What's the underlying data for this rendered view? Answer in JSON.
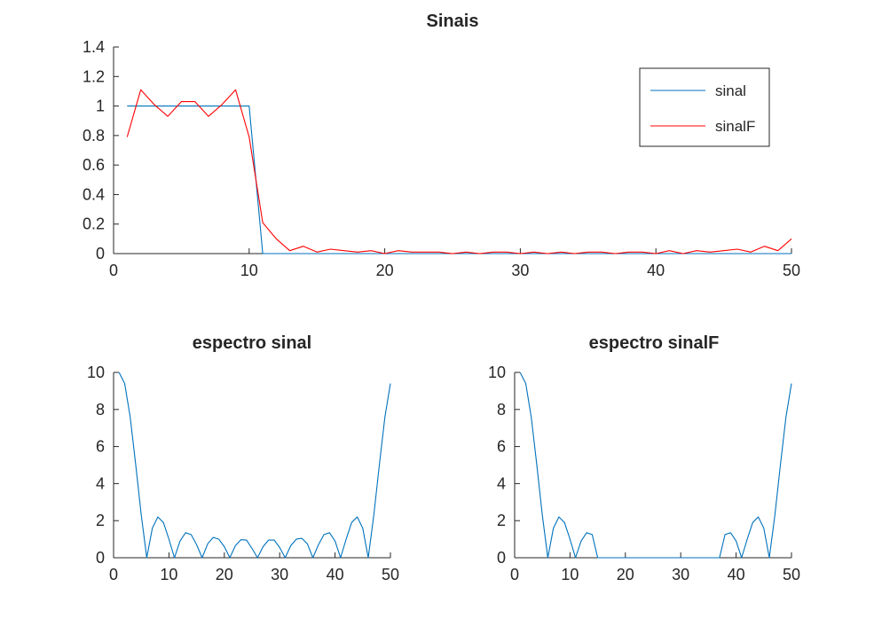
{
  "chart_data": [
    {
      "type": "line",
      "title": "Sinais",
      "xlabel": "",
      "ylabel": "",
      "xlim": [
        0,
        50
      ],
      "ylim": [
        0,
        1.4
      ],
      "xticks": [
        0,
        10,
        20,
        30,
        40,
        50
      ],
      "yticks": [
        0,
        0.2,
        0.4,
        0.6,
        0.8,
        1,
        1.2,
        1.4
      ],
      "xtick_labels": [
        "0",
        "10",
        "20",
        "30",
        "40",
        "50"
      ],
      "ytick_labels": [
        "0",
        "0.2",
        "0.4",
        "0.6",
        "0.8",
        "1",
        "1.2",
        "1.4"
      ],
      "grid": false,
      "legend": "top-right",
      "series": [
        {
          "name": "sinal",
          "color": "#0072BD",
          "x": [
            1,
            2,
            3,
            4,
            5,
            6,
            7,
            8,
            9,
            10,
            11,
            12,
            13,
            14,
            15,
            16,
            17,
            18,
            19,
            20,
            21,
            22,
            23,
            24,
            25,
            26,
            27,
            28,
            29,
            30,
            31,
            32,
            33,
            34,
            35,
            36,
            37,
            38,
            39,
            40,
            41,
            42,
            43,
            44,
            45,
            46,
            47,
            48,
            49,
            50
          ],
          "values": [
            1,
            1,
            1,
            1,
            1,
            1,
            1,
            1,
            1,
            1,
            0,
            0,
            0,
            0,
            0,
            0,
            0,
            0,
            0,
            0,
            0,
            0,
            0,
            0,
            0,
            0,
            0,
            0,
            0,
            0,
            0,
            0,
            0,
            0,
            0,
            0,
            0,
            0,
            0,
            0,
            0,
            0,
            0,
            0,
            0,
            0,
            0,
            0,
            0,
            0
          ]
        },
        {
          "name": "sinalF",
          "color": "#FF0000",
          "x": [
            1,
            2,
            3,
            4,
            5,
            6,
            7,
            8,
            9,
            10,
            11,
            12,
            13,
            14,
            15,
            16,
            17,
            18,
            19,
            20,
            21,
            22,
            23,
            24,
            25,
            26,
            27,
            28,
            29,
            30,
            31,
            32,
            33,
            34,
            35,
            36,
            37,
            38,
            39,
            40,
            41,
            42,
            43,
            44,
            45,
            46,
            47,
            48,
            49,
            50
          ],
          "values": [
            0.79,
            1.11,
            1.01,
            0.93,
            1.03,
            1.03,
            0.93,
            1.01,
            1.11,
            0.79,
            0.21,
            0.1,
            0.02,
            0.05,
            0.01,
            0.03,
            0.02,
            0.01,
            0.02,
            0.0,
            0.02,
            0.01,
            0.01,
            0.01,
            0.0,
            0.01,
            0.0,
            0.01,
            0.01,
            0.0,
            0.01,
            0.0,
            0.01,
            0.0,
            0.01,
            0.01,
            0.0,
            0.01,
            0.01,
            0.0,
            0.02,
            0.0,
            0.02,
            0.01,
            0.02,
            0.03,
            0.01,
            0.05,
            0.02,
            0.1
          ]
        }
      ]
    },
    {
      "type": "line",
      "title": "espectro sinal",
      "xlabel": "",
      "ylabel": "",
      "xlim": [
        0,
        50
      ],
      "ylim": [
        0,
        10
      ],
      "xticks": [
        0,
        10,
        20,
        30,
        40,
        50
      ],
      "yticks": [
        0,
        2,
        4,
        6,
        8,
        10
      ],
      "xtick_labels": [
        "0",
        "10",
        "20",
        "30",
        "40",
        "50"
      ],
      "ytick_labels": [
        "0",
        "2",
        "4",
        "6",
        "8",
        "10"
      ],
      "grid": false,
      "series": [
        {
          "color": "#0072BD",
          "x": [
            1,
            2,
            3,
            4,
            5,
            6,
            7,
            8,
            9,
            10,
            11,
            12,
            13,
            14,
            15,
            16,
            17,
            18,
            19,
            20,
            21,
            22,
            23,
            24,
            25,
            26,
            27,
            28,
            29,
            30,
            31,
            32,
            33,
            34,
            35,
            36,
            37,
            38,
            39,
            40,
            41,
            42,
            43,
            44,
            45,
            46,
            47,
            48,
            49,
            50
          ],
          "values": [
            10,
            9.4,
            7.6,
            5.0,
            2.3,
            0,
            1.6,
            2.2,
            1.9,
            1.0,
            0,
            0.9,
            1.35,
            1.25,
            0.7,
            0,
            0.75,
            1.1,
            1.0,
            0.6,
            0,
            0.65,
            0.97,
            0.95,
            0.5,
            0,
            0.6,
            0.95,
            0.95,
            0.55,
            0,
            0.65,
            1.0,
            1.05,
            0.75,
            0,
            0.7,
            1.25,
            1.35,
            0.9,
            0,
            1.0,
            1.9,
            2.2,
            1.6,
            0,
            2.3,
            5.0,
            7.6,
            9.4
          ]
        }
      ]
    },
    {
      "type": "line",
      "title": "espectro sinalF",
      "xlabel": "",
      "ylabel": "",
      "xlim": [
        0,
        50
      ],
      "ylim": [
        0,
        10
      ],
      "xticks": [
        0,
        10,
        20,
        30,
        40,
        50
      ],
      "yticks": [
        0,
        2,
        4,
        6,
        8,
        10
      ],
      "xtick_labels": [
        "0",
        "10",
        "20",
        "30",
        "40",
        "50"
      ],
      "ytick_labels": [
        "0",
        "2",
        "4",
        "6",
        "8",
        "10"
      ],
      "grid": false,
      "series": [
        {
          "color": "#0072BD",
          "x": [
            1,
            2,
            3,
            4,
            5,
            6,
            7,
            8,
            9,
            10,
            11,
            12,
            13,
            14,
            15,
            16,
            17,
            18,
            19,
            20,
            21,
            22,
            23,
            24,
            25,
            26,
            27,
            28,
            29,
            30,
            31,
            32,
            33,
            34,
            35,
            36,
            37,
            38,
            39,
            40,
            41,
            42,
            43,
            44,
            45,
            46,
            47,
            48,
            49,
            50
          ],
          "values": [
            10,
            9.4,
            7.6,
            5.0,
            2.3,
            0,
            1.6,
            2.2,
            1.9,
            1.0,
            0,
            0.9,
            1.35,
            1.25,
            0,
            0,
            0,
            0,
            0,
            0,
            0,
            0,
            0,
            0,
            0,
            0,
            0,
            0,
            0,
            0,
            0,
            0,
            0,
            0,
            0,
            0,
            0,
            1.25,
            1.35,
            0.9,
            0,
            1.0,
            1.9,
            2.2,
            1.6,
            0,
            2.3,
            5.0,
            7.6,
            9.4
          ]
        }
      ]
    }
  ]
}
